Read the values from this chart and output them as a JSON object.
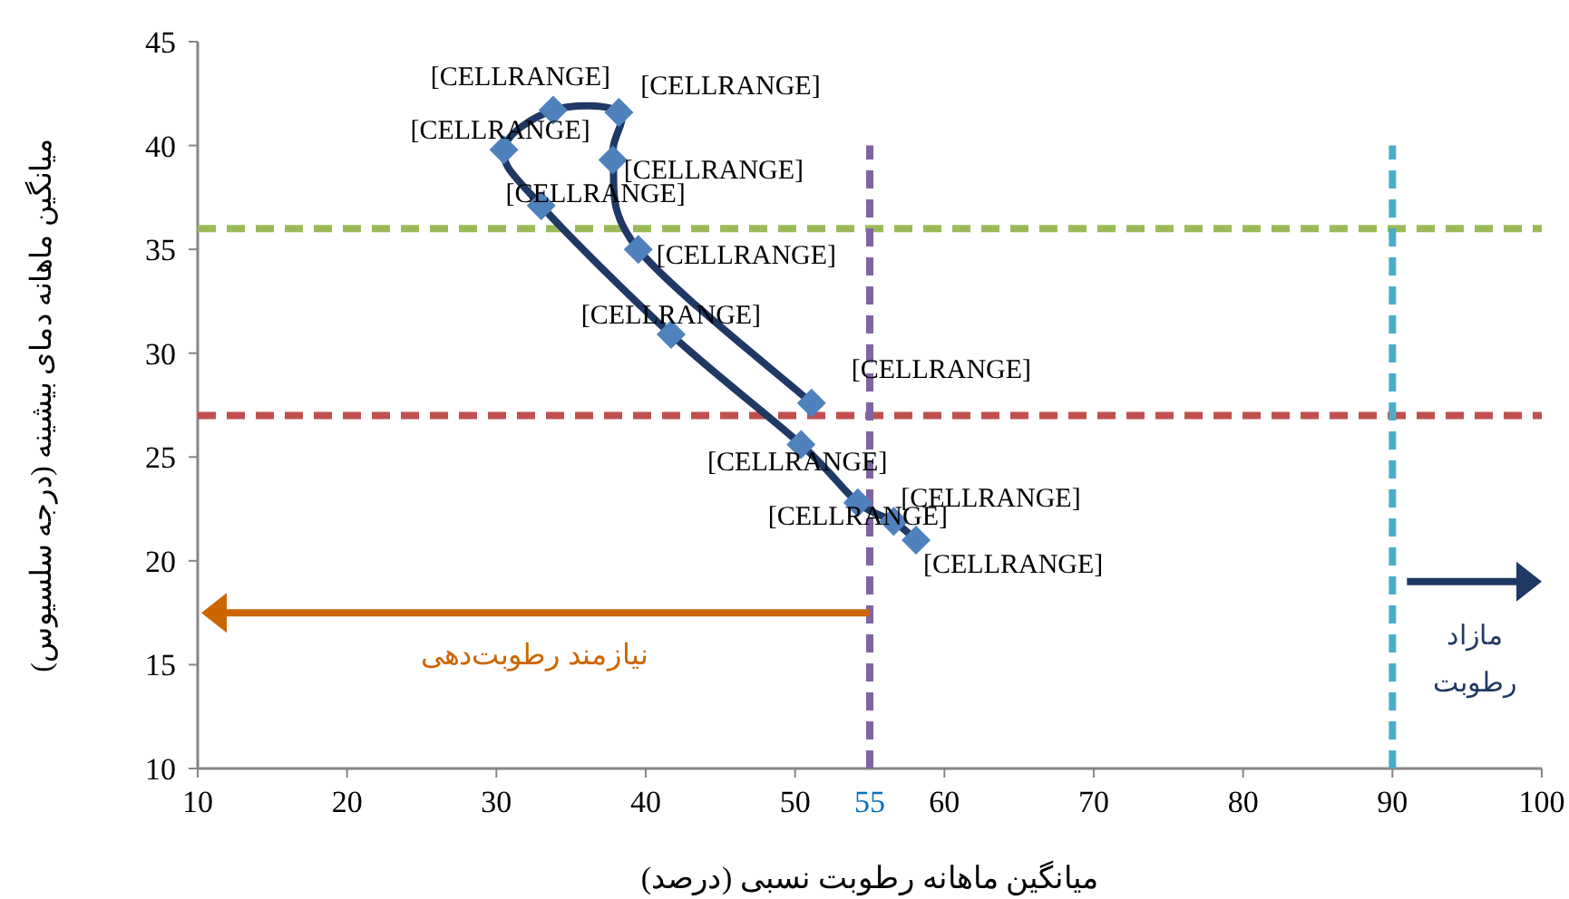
{
  "chart_data": {
    "type": "line",
    "xlabel": "میانگین ماهانه رطوبت نسبی (درصد)",
    "ylabel": "میانگین ماهانه دمای بیشینه (درجه سلسیوس)",
    "xlim": [
      10,
      100
    ],
    "ylim": [
      10,
      45
    ],
    "xticks": [
      10,
      20,
      30,
      40,
      50,
      60,
      70,
      80,
      90,
      100
    ],
    "yticks": [
      10,
      15,
      20,
      25,
      30,
      35,
      40,
      45
    ],
    "grid": false,
    "marker": "diamond",
    "line_style": "solid",
    "series": [
      {
        "color": "#4f81bd",
        "x": [
          58.1,
          56.6,
          54.2,
          50.4,
          41.7,
          33.0,
          30.5,
          33.8,
          38.2,
          37.8,
          39.5,
          51.1
        ],
        "values": [
          21.0,
          21.9,
          22.8,
          25.6,
          30.9,
          37.1,
          39.8,
          41.7,
          41.6,
          39.3,
          35.0,
          27.6
        ],
        "value_labels": [
          "[CELLRANGE]",
          "[CELLRANGE]",
          "[CELLRANGE]",
          "[CELLRANGE]",
          "[CELLRANGE]",
          "[CELLRANGE]",
          "[CELLRANGE]",
          "[CELLRANGE]",
          "[CELLRANGE]",
          "[CELLRANGE]",
          "[CELLRANGE]",
          "[CELLRANGE]"
        ]
      }
    ],
    "ref_lines": [
      {
        "axis": "y",
        "value": 36,
        "color": "#9bbb59",
        "line_style": "dashed"
      },
      {
        "axis": "y",
        "value": 27,
        "color": "#c0504d",
        "line_style": "dashed"
      },
      {
        "axis": "x",
        "value": 55,
        "label": "55",
        "color": "#8064a2",
        "line_style": "dashed"
      },
      {
        "axis": "x",
        "value": 90,
        "color": "#4bacc6",
        "line_style": "dashed"
      }
    ],
    "annotations": [
      "نیازمند رطوبت‌دهی",
      "مازاد رطوبت"
    ]
  }
}
